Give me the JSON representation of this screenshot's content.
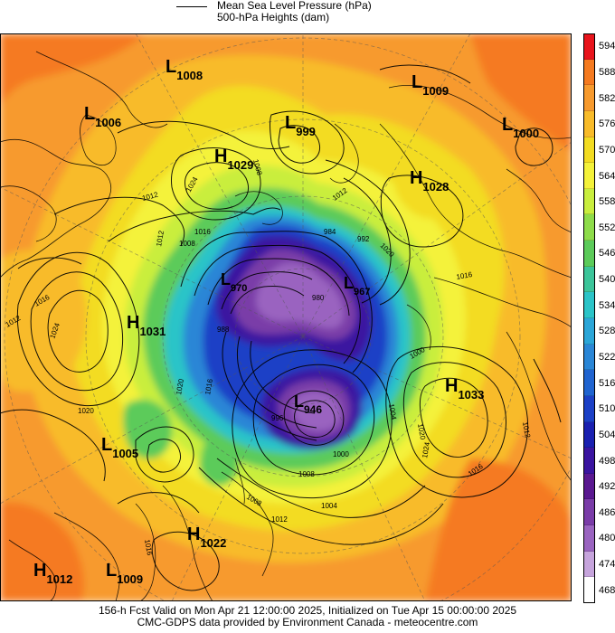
{
  "header": {
    "legend_label": "Mean Sea Level Pressure (hPa)",
    "subtitle": "500-hPa Heights (dam)"
  },
  "footer": {
    "line1": "156-h Fcst Valid on Mon Apr 21 12:00:00 2025, Initialized on Tue Apr 15 00:00:00 2025",
    "line2": "CMC-GDPS data provided by Environment Canada - meteocentre.com"
  },
  "colorbar": {
    "units": "dam",
    "levels": [
      "594",
      "588",
      "582",
      "576",
      "570",
      "564",
      "558",
      "552",
      "546",
      "540",
      "534",
      "528",
      "522",
      "516",
      "510",
      "504",
      "498",
      "492",
      "486",
      "480",
      "474",
      "468"
    ],
    "colors": [
      "#e8141c",
      "#f57a20",
      "#f79a2e",
      "#f8bb2a",
      "#f3dc22",
      "#f4f23a",
      "#c9ee3e",
      "#8edc4a",
      "#5ccb5a",
      "#3cc59a",
      "#2bc4c8",
      "#2ba6d8",
      "#2a86d6",
      "#2064d0",
      "#1c40c6",
      "#1a20b0",
      "#3a14a0",
      "#5a1890",
      "#7a3ca8",
      "#9a64c0",
      "#c6a4dc",
      "#ffffff"
    ]
  },
  "map": {
    "systems": [
      {
        "type": "L",
        "value": "1008"
      },
      {
        "type": "L",
        "value": "1006"
      },
      {
        "type": "H",
        "value": "1029"
      },
      {
        "type": "L",
        "value": "999"
      },
      {
        "type": "L",
        "value": "1009"
      },
      {
        "type": "L",
        "value": "1000"
      },
      {
        "type": "H",
        "value": "1028"
      },
      {
        "type": "L",
        "value": "970"
      },
      {
        "type": "L",
        "value": "967"
      },
      {
        "type": "H",
        "value": "1031"
      },
      {
        "type": "L",
        "value": "946"
      },
      {
        "type": "H",
        "value": "1033"
      },
      {
        "type": "L",
        "value": "1005"
      },
      {
        "type": "H",
        "value": "1022"
      },
      {
        "type": "H",
        "value": "1012"
      },
      {
        "type": "L",
        "value": "1009"
      }
    ],
    "isobar_labels": [
      "1012",
      "1016",
      "1020",
      "1024",
      "1008",
      "1004",
      "1000",
      "996",
      "992",
      "988",
      "984",
      "980"
    ]
  }
}
